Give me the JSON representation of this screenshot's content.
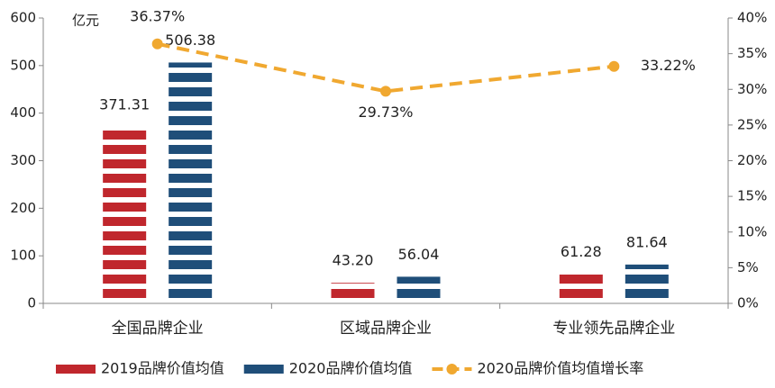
{
  "chart_data": {
    "type": "bar",
    "ylabel": "亿元",
    "categories": [
      "全国品牌企业",
      "区域品牌企业",
      "专业领先品牌企业"
    ],
    "series": [
      {
        "name": "2019品牌价值均值",
        "type": "bar",
        "color": "#c0272d",
        "values": [
          371.31,
          43.2,
          61.28
        ],
        "value_labels": [
          "371.31",
          "43.20",
          "61.28"
        ]
      },
      {
        "name": "2020品牌价值均值",
        "type": "bar",
        "color": "#1f4e79",
        "values": [
          506.38,
          56.04,
          81.64
        ],
        "value_labels": [
          "506.38",
          "56.04",
          "81.64"
        ]
      },
      {
        "name": "2020品牌价值均值增长率",
        "type": "line",
        "axis": "y2",
        "color": "#f0a830",
        "values": [
          36.37,
          29.73,
          33.22
        ],
        "value_labels": [
          "36.37%",
          "29.73%",
          "33.22%"
        ]
      }
    ],
    "ylim": [
      0,
      600
    ],
    "yticks": [
      0,
      100,
      200,
      300,
      400,
      500,
      600
    ],
    "y2lim": [
      0,
      40
    ],
    "y2ticks": [
      {
        "value": 0,
        "label": "0%"
      },
      {
        "value": 5,
        "label": "5%"
      },
      {
        "value": 10,
        "label": "10%"
      },
      {
        "value": 15,
        "label": "15%"
      },
      {
        "value": 20,
        "label": "20%"
      },
      {
        "value": 25,
        "label": "25%"
      },
      {
        "value": 30,
        "label": "30%"
      },
      {
        "value": 35,
        "label": "35%"
      },
      {
        "value": 40,
        "label": "40%"
      }
    ],
    "grid": false,
    "legend": "bottom"
  }
}
